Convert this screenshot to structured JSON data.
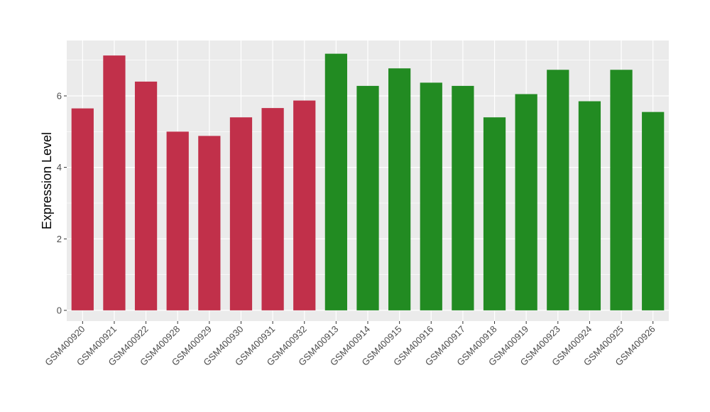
{
  "chart_data": {
    "type": "bar",
    "title": "",
    "xlabel": "",
    "ylabel": "Expression Level",
    "ylim": [
      -0.3,
      7.55
    ],
    "yticks": [
      0,
      2,
      4,
      6
    ],
    "grid": true,
    "legend": "none",
    "categories": [
      "GSM400920",
      "GSM400921",
      "GSM400922",
      "GSM400928",
      "GSM400929",
      "GSM400930",
      "GSM400931",
      "GSM400932",
      "GSM400913",
      "GSM400914",
      "GSM400915",
      "GSM400916",
      "GSM400917",
      "GSM400918",
      "GSM400919",
      "GSM400923",
      "GSM400924",
      "GSM400925",
      "GSM400926"
    ],
    "values": [
      5.65,
      7.13,
      6.4,
      5.0,
      4.88,
      5.4,
      5.66,
      5.87,
      7.18,
      6.28,
      6.77,
      6.37,
      6.28,
      5.4,
      6.05,
      6.73,
      5.85,
      6.73,
      5.55
    ],
    "bar_colors": [
      "#c1304a",
      "#c1304a",
      "#c1304a",
      "#c1304a",
      "#c1304a",
      "#c1304a",
      "#c1304a",
      "#c1304a",
      "#228b22",
      "#228b22",
      "#228b22",
      "#228b22",
      "#228b22",
      "#228b22",
      "#228b22",
      "#228b22",
      "#228b22",
      "#228b22",
      "#228b22"
    ],
    "panel_background": "#ebebeb",
    "grid_color": "#ffffff"
  }
}
